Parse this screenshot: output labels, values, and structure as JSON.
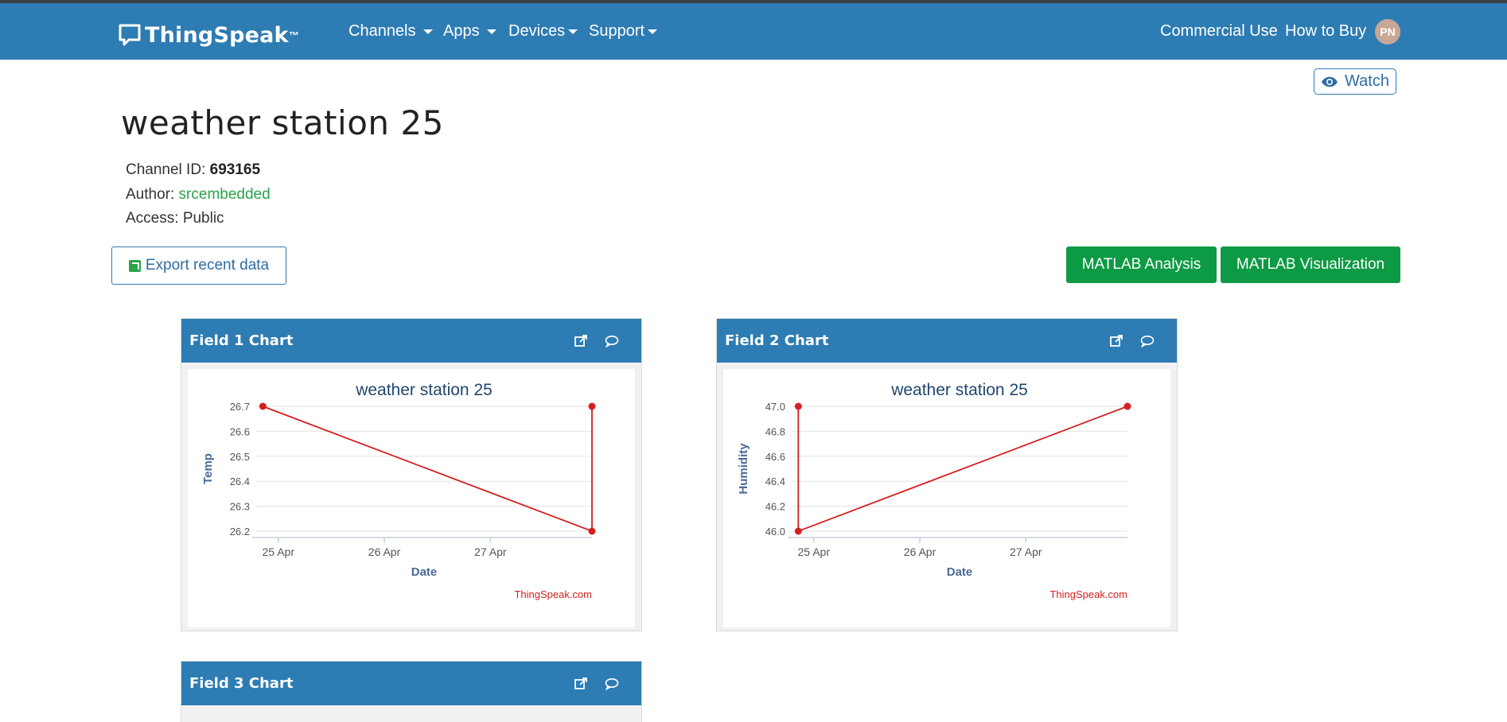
{
  "nav": {
    "brand": "ThingSpeak",
    "brand_mark": "™",
    "menu": [
      {
        "label": "Channels"
      },
      {
        "label": "Apps"
      },
      {
        "label": "Devices"
      },
      {
        "label": "Support"
      }
    ],
    "commercial": "Commercial Use",
    "how_to_buy": "How to Buy",
    "avatar_initials": "PN"
  },
  "watch_label": "Watch",
  "channel": {
    "title": "weather station 25",
    "id_label": "Channel ID:",
    "id_value": "693165",
    "author_label": "Author:",
    "author_value": "srcembedded",
    "access_label": "Access:",
    "access_value": "Public"
  },
  "actions": {
    "export": "Export recent data",
    "matlab_analysis": "MATLAB Analysis",
    "matlab_visualization": "MATLAB Visualization"
  },
  "colors": {
    "navbar": "#2d7cb3",
    "matlab_button": "#0d9a44",
    "series": "#d62020",
    "author_link": "#2aa34a"
  },
  "panels": [
    {
      "title": "Field 1 Chart",
      "icons": [
        "external-link-icon",
        "comment-icon"
      ]
    },
    {
      "title": "Field 2 Chart",
      "icons": [
        "external-link-icon",
        "comment-icon"
      ]
    },
    {
      "title": "Field 3 Chart",
      "icons": [
        "external-link-icon",
        "comment-icon"
      ]
    }
  ],
  "chart_data": [
    {
      "type": "line",
      "title": "weather station 25",
      "xlabel": "Date",
      "ylabel": "Temp",
      "credit": "ThingSpeak.com",
      "x_ticks": [
        "25 Apr",
        "26 Apr",
        "27 Apr"
      ],
      "xlim": [
        "2019-04-24T19:00",
        "2019-04-27T23:00"
      ],
      "ylim": [
        26.2,
        26.7
      ],
      "y_ticks": [
        "26.7",
        "26.6",
        "26.5",
        "26.4",
        "26.3",
        "26.2"
      ],
      "grid": true,
      "series": [
        {
          "points": [
            {
              "x": "2019-04-24T20:30",
              "y": 26.7
            },
            {
              "x": "2019-04-27T23:00",
              "y": 26.2
            },
            {
              "x": "2019-04-27T23:00",
              "y": 26.7
            }
          ]
        }
      ]
    },
    {
      "type": "line",
      "title": "weather station 25",
      "xlabel": "Date",
      "ylabel": "Humidity",
      "credit": "ThingSpeak.com",
      "x_ticks": [
        "25 Apr",
        "26 Apr",
        "27 Apr"
      ],
      "xlim": [
        "2019-04-24T19:00",
        "2019-04-27T23:00"
      ],
      "ylim": [
        46.0,
        47.0
      ],
      "y_ticks": [
        "47.0",
        "46.8",
        "46.6",
        "46.4",
        "46.2",
        "46.0"
      ],
      "grid": true,
      "series": [
        {
          "points": [
            {
              "x": "2019-04-24T20:30",
              "y": 47.0
            },
            {
              "x": "2019-04-24T20:30",
              "y": 46.0
            },
            {
              "x": "2019-04-27T23:00",
              "y": 47.0
            }
          ]
        }
      ]
    }
  ]
}
